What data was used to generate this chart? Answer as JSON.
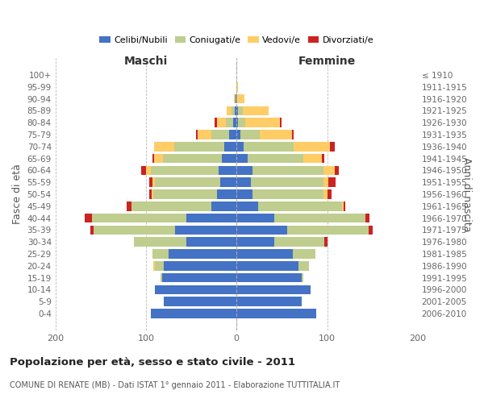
{
  "age_groups": [
    "0-4",
    "5-9",
    "10-14",
    "15-19",
    "20-24",
    "25-29",
    "30-34",
    "35-39",
    "40-44",
    "45-49",
    "50-54",
    "55-59",
    "60-64",
    "65-69",
    "70-74",
    "75-79",
    "80-84",
    "85-89",
    "90-94",
    "95-99",
    "100+"
  ],
  "birth_years": [
    "2006-2010",
    "2001-2005",
    "1996-2000",
    "1991-1995",
    "1986-1990",
    "1981-1985",
    "1976-1980",
    "1971-1975",
    "1966-1970",
    "1961-1965",
    "1956-1960",
    "1951-1955",
    "1946-1950",
    "1941-1945",
    "1936-1940",
    "1931-1935",
    "1926-1930",
    "1921-1925",
    "1916-1920",
    "1911-1915",
    "≤ 1910"
  ],
  "colors": {
    "celibi": "#4472C4",
    "coniugati": "#BFCD8E",
    "vedovi": "#FFCC66",
    "divorziati": "#CC2222"
  },
  "maschi": {
    "celibi": [
      95,
      80,
      90,
      82,
      80,
      75,
      55,
      68,
      55,
      28,
      22,
      18,
      20,
      16,
      14,
      8,
      4,
      2,
      1,
      0,
      0
    ],
    "coniugati": [
      0,
      0,
      0,
      2,
      10,
      18,
      58,
      90,
      105,
      88,
      70,
      72,
      75,
      65,
      55,
      20,
      8,
      4,
      1,
      0,
      0
    ],
    "vedovi": [
      0,
      0,
      0,
      0,
      2,
      0,
      0,
      0,
      0,
      0,
      2,
      3,
      5,
      10,
      22,
      15,
      10,
      5,
      1,
      0,
      0
    ],
    "divorziati": [
      0,
      0,
      0,
      0,
      0,
      0,
      0,
      3,
      8,
      5,
      2,
      3,
      5,
      2,
      0,
      2,
      2,
      0,
      0,
      0,
      0
    ]
  },
  "femmine": {
    "celibi": [
      88,
      72,
      82,
      72,
      68,
      62,
      42,
      56,
      42,
      24,
      18,
      16,
      18,
      12,
      8,
      4,
      2,
      2,
      0,
      0,
      0
    ],
    "coniugati": [
      0,
      0,
      0,
      2,
      12,
      25,
      55,
      90,
      100,
      92,
      78,
      80,
      78,
      62,
      55,
      22,
      8,
      5,
      1,
      0,
      0
    ],
    "vedovi": [
      0,
      0,
      0,
      0,
      0,
      0,
      0,
      0,
      0,
      2,
      4,
      5,
      12,
      20,
      40,
      35,
      38,
      28,
      8,
      2,
      0
    ],
    "divorziati": [
      0,
      0,
      0,
      0,
      0,
      0,
      3,
      4,
      5,
      2,
      5,
      8,
      5,
      3,
      5,
      2,
      2,
      0,
      0,
      0,
      0
    ]
  },
  "title": "Popolazione per età, sesso e stato civile - 2011",
  "subtitle": "COMUNE DI RENATE (MB) - Dati ISTAT 1° gennaio 2011 - Elaborazione TUTTITALIA.IT",
  "xlabel_maschi": "Maschi",
  "xlabel_femmine": "Femmine",
  "ylabel_left": "Fasce di età",
  "ylabel_right": "Anni di nascita",
  "xlim": 200,
  "background_color": "#ffffff",
  "grid_color": "#bbbbbb"
}
